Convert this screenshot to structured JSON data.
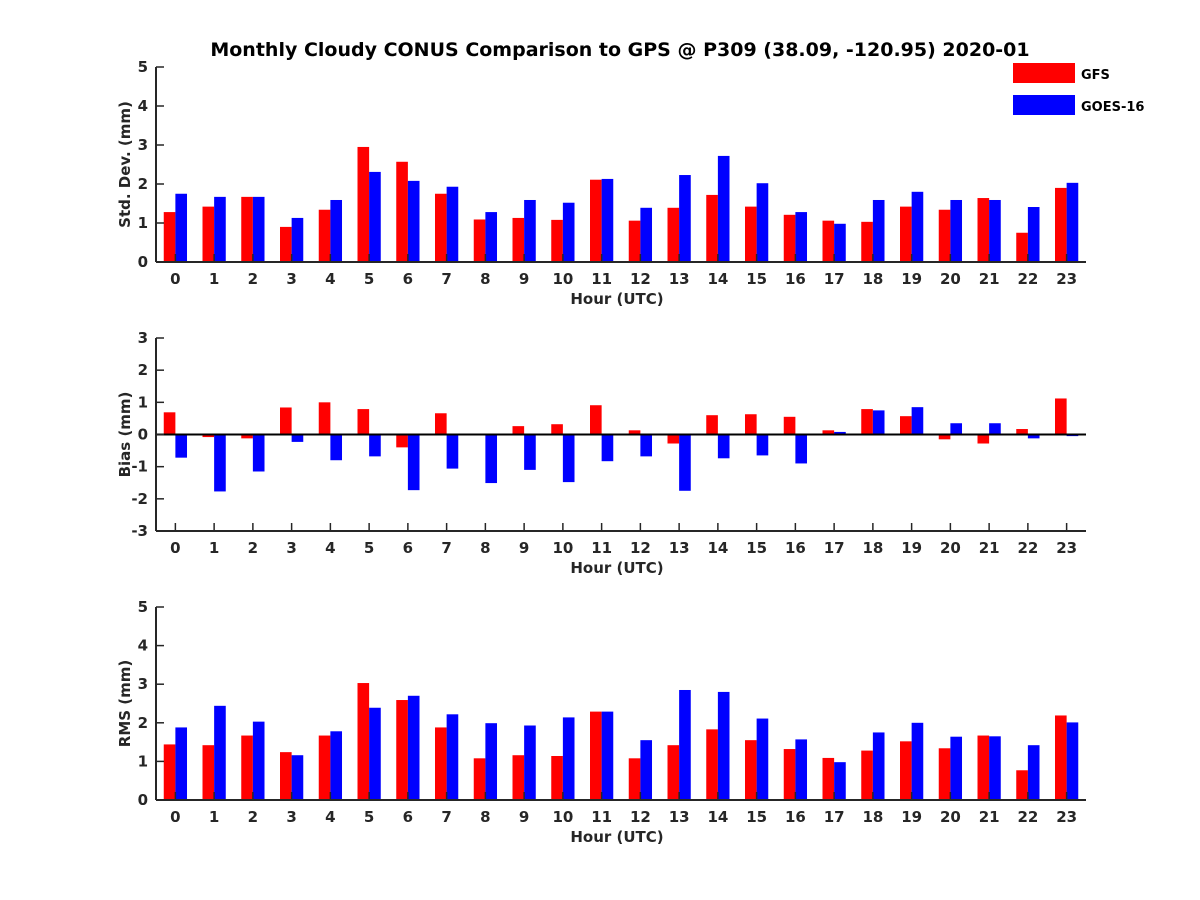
{
  "chart_data": {
    "type": "bar",
    "title": "Monthly Cloudy CONUS Comparison to GPS @ P309 (38.09, -120.95) 2020-01",
    "legend": {
      "placement": "top-right",
      "entries": [
        {
          "name": "GFS",
          "color": "#ff0000"
        },
        {
          "name": "GOES-16",
          "color": "#0000ff"
        }
      ]
    },
    "categories": [
      "0",
      "1",
      "2",
      "3",
      "4",
      "5",
      "6",
      "7",
      "8",
      "9",
      "10",
      "11",
      "12",
      "13",
      "14",
      "15",
      "16",
      "17",
      "18",
      "19",
      "20",
      "21",
      "22",
      "23"
    ],
    "panels": [
      {
        "name": "std-dev",
        "ylabel": "Std. Dev. (mm)",
        "xlabel": "Hour (UTC)",
        "ylim": [
          0,
          5
        ],
        "yticks": [
          0,
          1,
          2,
          3,
          4,
          5
        ],
        "series": [
          {
            "name": "GFS",
            "color": "#ff0000",
            "values": [
              1.28,
              1.42,
              1.67,
              0.9,
              1.34,
              2.95,
              2.57,
              1.75,
              1.09,
              1.13,
              1.08,
              2.11,
              1.06,
              1.39,
              1.72,
              1.42,
              1.21,
              1.06,
              1.03,
              1.42,
              1.34,
              1.64,
              0.75,
              1.9
            ]
          },
          {
            "name": "GOES-16",
            "color": "#0000ff",
            "values": [
              1.75,
              1.67,
              1.67,
              1.13,
              1.59,
              2.31,
              2.08,
              1.93,
              1.28,
              1.59,
              1.52,
              2.13,
              1.39,
              2.23,
              2.72,
              2.02,
              1.28,
              0.98,
              1.59,
              1.8,
              1.59,
              1.59,
              1.41,
              2.03
            ]
          }
        ]
      },
      {
        "name": "bias",
        "ylabel": "Bias (mm)",
        "xlabel": "Hour (UTC)",
        "ylim": [
          -3,
          3
        ],
        "yticks": [
          -3,
          -2,
          -1,
          0,
          1,
          2,
          3
        ],
        "zero_line": true,
        "series": [
          {
            "name": "GFS",
            "color": "#ff0000",
            "values": [
              0.69,
              -0.08,
              -0.12,
              0.84,
              1.0,
              0.79,
              -0.4,
              0.66,
              -0.02,
              0.26,
              0.32,
              0.91,
              0.13,
              -0.28,
              0.6,
              0.63,
              0.55,
              0.13,
              0.79,
              0.57,
              -0.15,
              -0.28,
              0.17,
              1.12
            ]
          },
          {
            "name": "GOES-16",
            "color": "#0000ff",
            "values": [
              -0.72,
              -1.77,
              -1.15,
              -0.23,
              -0.8,
              -0.68,
              -1.73,
              -1.06,
              -1.51,
              -1.1,
              -1.48,
              -0.83,
              -0.68,
              -1.75,
              -0.74,
              -0.65,
              -0.9,
              0.08,
              0.75,
              0.85,
              0.35,
              0.35,
              -0.12,
              -0.05
            ]
          }
        ]
      },
      {
        "name": "rms",
        "ylabel": "RMS (mm)",
        "xlabel": "Hour (UTC)",
        "ylim": [
          0,
          5
        ],
        "yticks": [
          0,
          1,
          2,
          3,
          4,
          5
        ],
        "series": [
          {
            "name": "GFS",
            "color": "#ff0000",
            "values": [
              1.44,
              1.42,
              1.67,
              1.24,
              1.67,
              3.03,
              2.59,
              1.88,
              1.08,
              1.16,
              1.14,
              2.29,
              1.08,
              1.42,
              1.83,
              1.55,
              1.32,
              1.09,
              1.28,
              1.52,
              1.34,
              1.67,
              0.77,
              2.19
            ]
          },
          {
            "name": "GOES-16",
            "color": "#0000ff",
            "values": [
              1.88,
              2.44,
              2.03,
              1.16,
              1.78,
              2.39,
              2.7,
              2.22,
              1.99,
              1.93,
              2.14,
              2.29,
              1.55,
              2.85,
              2.8,
              2.11,
              1.57,
              0.98,
              1.75,
              2.0,
              1.64,
              1.65,
              1.42,
              2.01
            ]
          }
        ]
      }
    ]
  }
}
